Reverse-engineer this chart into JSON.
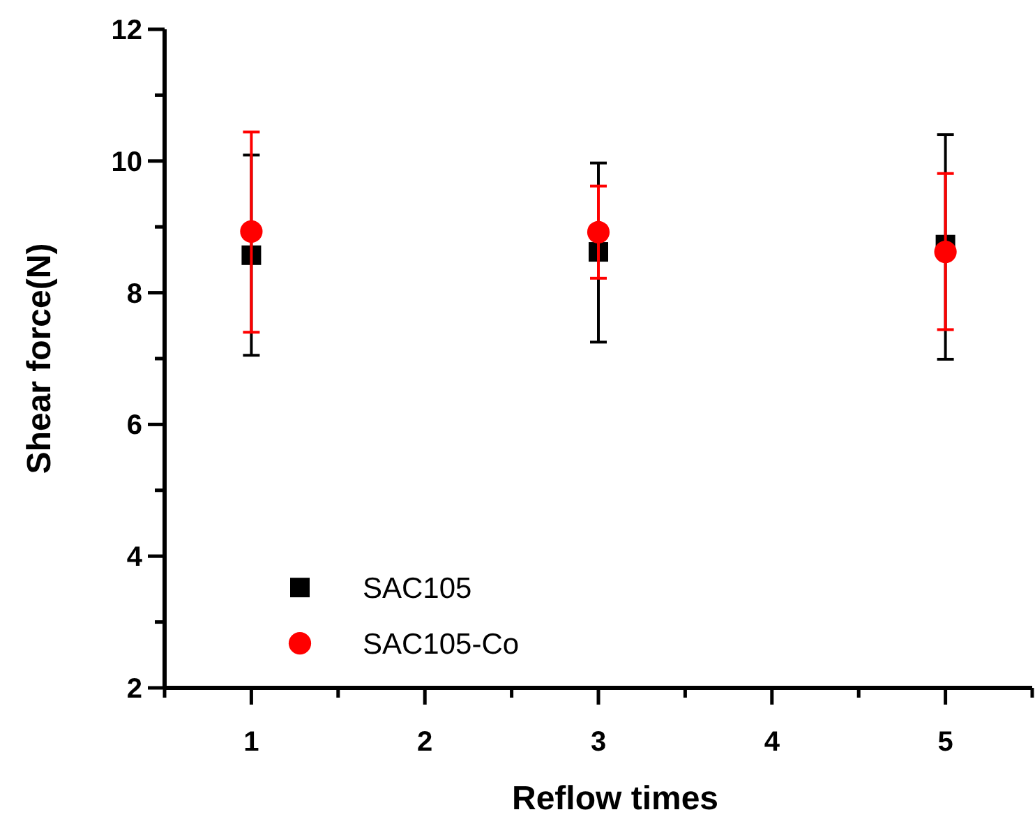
{
  "chart_data": {
    "type": "scatter",
    "xlabel": "Reflow times",
    "ylabel": "Shear force(N)",
    "x": [
      1,
      3,
      5
    ],
    "xlim": [
      0.5,
      5.5
    ],
    "xticks": [
      {
        "value": 0.5,
        "label": null
      },
      1,
      {
        "value": 1.5,
        "label": null
      },
      2,
      {
        "value": 2.5,
        "label": null
      },
      3,
      {
        "value": 3.5,
        "label": null
      },
      4,
      {
        "value": 4.5,
        "label": null
      },
      5,
      {
        "value": 5.5,
        "label": null
      }
    ],
    "ylim": [
      2,
      12
    ],
    "yticks": [
      2,
      {
        "value": 3,
        "label": null
      },
      4,
      {
        "value": 5,
        "label": null
      },
      6,
      {
        "value": 7,
        "label": null
      },
      8,
      {
        "value": 9,
        "label": null
      },
      10,
      {
        "value": 11,
        "label": null
      },
      12
    ],
    "grid": false,
    "legend": "bottom left",
    "series": [
      {
        "name": "SAC105",
        "color": "#000000",
        "marker": "square",
        "values": [
          8.57,
          8.62,
          8.73
        ],
        "errors": [
          [
            7.05,
            10.09
          ],
          [
            7.25,
            9.97
          ],
          [
            6.99,
            10.4
          ]
        ]
      },
      {
        "name": "SAC105-Co",
        "color": "#ff0000",
        "marker": "circle",
        "values": [
          8.93,
          8.92,
          8.62
        ],
        "errors": [
          [
            7.4,
            10.44
          ],
          [
            8.22,
            9.62
          ],
          [
            7.44,
            9.81
          ]
        ]
      }
    ]
  }
}
